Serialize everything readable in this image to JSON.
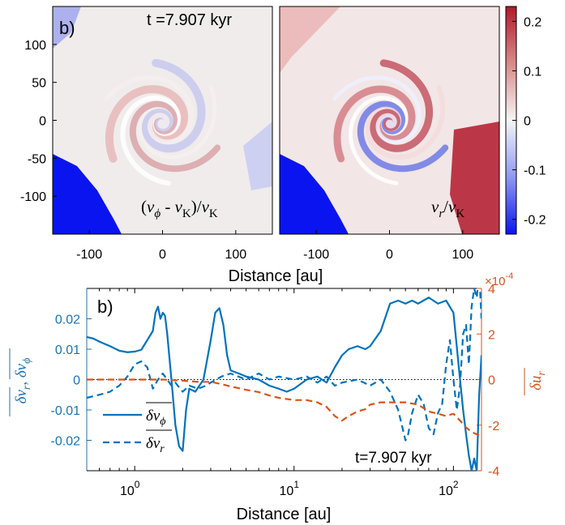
{
  "chart_data": [
    {
      "type": "heatmap",
      "panels": [
        {
          "panel_label": "b)",
          "time_label": "t =7.907 kyr",
          "field_label": "(v_ϕ - v_K)/v_K"
        },
        {
          "panel_label": "",
          "time_label": "",
          "field_label": "v_r/v_K"
        }
      ],
      "xlabel": "Distance [au]",
      "ylabel": "",
      "xlim": [
        -150,
        150
      ],
      "ylim": [
        -150,
        150
      ],
      "x_ticks": [
        -100,
        0,
        100
      ],
      "y_ticks": [
        100,
        50,
        0,
        -50,
        -100
      ],
      "colorbar": {
        "min": -0.23,
        "max": 0.23,
        "ticks": [
          "0.2",
          "0.1",
          "0",
          "-0.1",
          "-0.2"
        ],
        "low_color": "#0a14f0",
        "mid_color": "#f5f5f5",
        "high_color": "#b2182b"
      }
    },
    {
      "type": "line",
      "panel_label": "b)",
      "annotation": "t=7.907 kyr",
      "xlabel": "Distance [au]",
      "ylabel_left": "δv_r, δv_ϕ (overlined)",
      "ylabel_right": "δu_r (overlined)",
      "xscale": "log",
      "xlim": [
        0.5,
        150
      ],
      "ylim_left": [
        -0.03,
        0.03
      ],
      "ylim_right": [
        -4,
        4
      ],
      "right_multiplier": "×10",
      "right_multiplier_exp": "-4",
      "x_ticks": [
        {
          "base": "10",
          "exp": "0",
          "value": 1
        },
        {
          "base": "10",
          "exp": "1",
          "value": 10
        },
        {
          "base": "10",
          "exp": "2",
          "value": 100
        }
      ],
      "y_ticks_left": [
        "0.02",
        "0.01",
        "0",
        "-0.01",
        "-0.02"
      ],
      "y_ticks_left_values": [
        0.02,
        0.01,
        0,
        -0.01,
        -0.02
      ],
      "y_ticks_right": [
        "4",
        "2",
        "0",
        "-2",
        "-4"
      ],
      "y_ticks_right_values": [
        4,
        2,
        0,
        -2,
        -4
      ],
      "legend": {
        "location": "bottom-left",
        "entries": [
          "δv_ϕ (overlined)",
          "δv_r (overlined)"
        ]
      },
      "colors": {
        "blue": "#0072bd",
        "orange": "#d95319"
      },
      "series": [
        {
          "name": "δv_ϕ",
          "axis": "left",
          "style": "solid",
          "x": [
            0.5,
            0.55,
            0.6,
            0.7,
            0.8,
            0.9,
            1.0,
            1.1,
            1.2,
            1.3,
            1.35,
            1.4,
            1.45,
            1.5,
            1.55,
            1.6,
            1.7,
            1.8,
            1.9,
            2.0,
            2.1,
            2.2,
            2.4,
            2.7,
            3.0,
            3.2,
            3.4,
            3.6,
            3.8,
            4.0,
            4.5,
            5,
            6,
            7,
            8,
            9,
            10,
            12,
            14,
            16,
            18,
            20,
            22,
            25,
            28,
            30,
            35,
            40,
            45,
            50,
            55,
            60,
            70,
            80,
            90,
            100,
            110,
            115,
            120,
            125,
            130,
            135,
            140,
            145,
            150
          ],
          "y": [
            0.014,
            0.0135,
            0.0125,
            0.011,
            0.0095,
            0.009,
            0.0092,
            0.0098,
            0.013,
            0.016,
            0.022,
            0.024,
            0.02,
            0.022,
            0.021,
            0.015,
            0.0,
            -0.015,
            -0.022,
            -0.0235,
            -0.01,
            -0.003,
            -0.004,
            0.0,
            0.013,
            0.022,
            0.0235,
            0.018,
            0.008,
            0.003,
            0.002,
            0.001,
            0.0,
            -0.002,
            -0.003,
            -0.004,
            -0.003,
            0.0,
            0.001,
            -0.001,
            0.004,
            0.008,
            0.01,
            0.011,
            0.01,
            0.011,
            0.016,
            0.025,
            0.026,
            0.025,
            0.026,
            0.025,
            0.027,
            0.025,
            0.026,
            0.022,
            0.0,
            -0.01,
            -0.018,
            -0.025,
            -0.03,
            -0.026,
            -0.03,
            -0.005,
            0.008
          ]
        },
        {
          "name": "δv_r",
          "axis": "left",
          "style": "dashed",
          "x": [
            0.5,
            0.6,
            0.7,
            0.8,
            0.9,
            1.0,
            1.1,
            1.2,
            1.3,
            1.4,
            1.5,
            1.6,
            1.7,
            1.8,
            2.0,
            2.2,
            2.5,
            2.8,
            3.0,
            3.5,
            4,
            5,
            6,
            7,
            8,
            10,
            12,
            14,
            16,
            18,
            20,
            25,
            30,
            35,
            40,
            45,
            50,
            52,
            55,
            60,
            65,
            70,
            75,
            80,
            85,
            90,
            95,
            100,
            105,
            110,
            115,
            120,
            125,
            130,
            135,
            140,
            145,
            150
          ],
          "y": [
            -0.006,
            -0.005,
            -0.004,
            -0.002,
            0.001,
            0.005,
            0.006,
            0.004,
            -0.003,
            0.0,
            0.002,
            0.0,
            -0.002,
            -0.001,
            -0.004,
            -0.002,
            -0.003,
            -0.002,
            -0.001,
            0.001,
            0.002,
            0.0,
            0.002,
            0.0,
            0.001,
            0.0,
            0.001,
            -0.001,
            0.001,
            -0.002,
            -0.001,
            0.0,
            -0.002,
            0.0,
            -0.004,
            -0.01,
            -0.02,
            -0.018,
            -0.011,
            -0.005,
            -0.008,
            -0.016,
            -0.018,
            -0.011,
            -0.008,
            0.005,
            0.013,
            0.0,
            -0.01,
            -0.002,
            0.015,
            0.018,
            0.005,
            0.024,
            0.03,
            0.027,
            0.035,
            0.02
          ]
        },
        {
          "name": "δu_r",
          "axis": "right",
          "style": "dashed",
          "x": [
            0.5,
            0.7,
            1,
            1.5,
            2,
            2.5,
            3,
            3.5,
            4,
            5,
            6,
            7,
            8,
            10,
            12,
            14,
            16,
            18,
            20,
            22,
            25,
            28,
            30,
            35,
            40,
            50,
            60,
            70,
            80,
            90,
            100,
            110,
            120,
            130,
            140,
            150
          ],
          "y": [
            0.0,
            0.0,
            0.0,
            0.0,
            -0.05,
            -0.1,
            -0.1,
            -0.2,
            -0.3,
            -0.45,
            -0.55,
            -0.7,
            -0.8,
            -0.9,
            -0.9,
            -1.0,
            -1.2,
            -1.6,
            -1.8,
            -1.6,
            -1.4,
            -1.3,
            -1.1,
            -1.0,
            -1.0,
            -1.0,
            -1.1,
            -1.4,
            -1.5,
            -1.6,
            -1.5,
            -1.8,
            -2.1,
            -2.3,
            -2.4,
            -2.5
          ]
        }
      ]
    }
  ]
}
